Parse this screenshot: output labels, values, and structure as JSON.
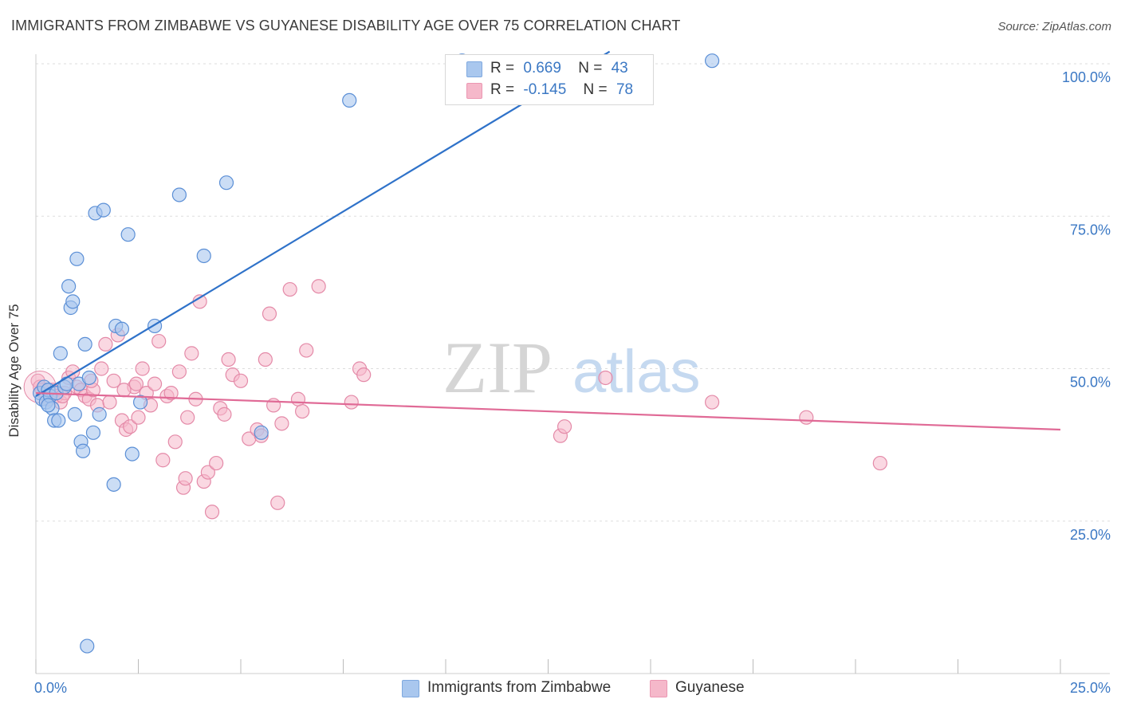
{
  "title": "IMMIGRANTS FROM ZIMBABWE VS GUYANESE DISABILITY AGE OVER 75 CORRELATION CHART",
  "source": "Source: ZipAtlas.com",
  "watermark": {
    "part1": "ZIP",
    "part2": "atlas"
  },
  "legend": {
    "rows": [
      {
        "r_label": "R =",
        "r_value": "0.669",
        "n_label": "N =",
        "n_value": "43",
        "color": "#a9c7ee"
      },
      {
        "r_label": "R =",
        "r_value": "-0.145",
        "n_label": "N =",
        "n_value": "78",
        "color": "#f5b8ca"
      }
    ]
  },
  "bottom_legend": [
    {
      "label": "Immigrants from Zimbabwe",
      "color": "#a9c7ee"
    },
    {
      "label": "Guyanese",
      "color": "#f5b8ca"
    }
  ],
  "colors": {
    "blue_fill": "#a9c7ee",
    "blue_stroke": "#5b8fd6",
    "blue_line": "#2f72c9",
    "pink_fill": "#f5b8ca",
    "pink_stroke": "#e48aa8",
    "pink_line": "#e06a96",
    "tick_label": "#3b78c4",
    "grid": "#dddddd"
  },
  "chart_data": {
    "type": "scatter",
    "title": "IMMIGRANTS FROM ZIMBABWE VS GUYANESE DISABILITY AGE OVER 75 CORRELATION CHART",
    "xlabel": "",
    "ylabel": "Disability Age Over 75",
    "xlim": [
      0,
      25
    ],
    "ylim": [
      0,
      102
    ],
    "x_tick_labels": [
      {
        "value": 0,
        "label": "0.0%"
      },
      {
        "value": 25,
        "label": "25.0%"
      }
    ],
    "y_tick_labels": [
      {
        "value": 25,
        "label": "25.0%"
      },
      {
        "value": 50,
        "label": "50.0%"
      },
      {
        "value": 75,
        "label": "75.0%"
      },
      {
        "value": 100,
        "label": "100.0%"
      }
    ],
    "grid": true,
    "legend_position": "top-center",
    "series": [
      {
        "name": "Immigrants from Zimbabwe",
        "color": "#a9c7ee",
        "trendline": {
          "x": [
            0.0,
            14.0
          ],
          "y": [
            45.5,
            102.0
          ]
        },
        "points": [
          [
            0.1,
            46.0
          ],
          [
            0.15,
            45.0
          ],
          [
            0.2,
            47.0
          ],
          [
            0.25,
            44.5
          ],
          [
            0.3,
            46.5
          ],
          [
            0.35,
            45.5
          ],
          [
            0.4,
            43.5
          ],
          [
            0.45,
            41.5
          ],
          [
            0.5,
            46.0
          ],
          [
            0.55,
            41.5
          ],
          [
            0.6,
            52.5
          ],
          [
            0.7,
            47.0
          ],
          [
            0.75,
            47.5
          ],
          [
            0.8,
            63.5
          ],
          [
            0.85,
            60.0
          ],
          [
            0.9,
            61.0
          ],
          [
            0.95,
            42.5
          ],
          [
            1.0,
            68.0
          ],
          [
            1.05,
            47.5
          ],
          [
            1.1,
            38.0
          ],
          [
            1.15,
            36.5
          ],
          [
            1.2,
            54.0
          ],
          [
            1.3,
            48.5
          ],
          [
            1.4,
            39.5
          ],
          [
            1.45,
            75.5
          ],
          [
            1.55,
            42.5
          ],
          [
            1.65,
            76.0
          ],
          [
            1.9,
            31.0
          ],
          [
            1.95,
            57.0
          ],
          [
            2.1,
            56.5
          ],
          [
            2.25,
            72.0
          ],
          [
            2.35,
            36.0
          ],
          [
            2.55,
            44.5
          ],
          [
            2.9,
            57.0
          ],
          [
            3.5,
            78.5
          ],
          [
            4.1,
            68.5
          ],
          [
            4.65,
            80.5
          ],
          [
            5.5,
            39.5
          ],
          [
            7.65,
            94.0
          ],
          [
            10.4,
            100.5
          ],
          [
            16.5,
            100.5
          ],
          [
            1.25,
            4.5
          ],
          [
            0.3,
            44.0
          ]
        ]
      },
      {
        "name": "Guyanese",
        "color": "#f5b8ca",
        "trendline": {
          "x": [
            0.0,
            25.0
          ],
          "y": [
            46.0,
            40.0
          ]
        },
        "points": [
          [
            0.05,
            48.0
          ],
          [
            0.1,
            47.0
          ],
          [
            0.2,
            46.0
          ],
          [
            0.3,
            45.0
          ],
          [
            0.4,
            46.5
          ],
          [
            0.5,
            45.5
          ],
          [
            0.6,
            44.5
          ],
          [
            0.7,
            46.0
          ],
          [
            0.8,
            48.5
          ],
          [
            0.9,
            49.5
          ],
          [
            1.0,
            47.0
          ],
          [
            1.1,
            46.5
          ],
          [
            1.2,
            45.5
          ],
          [
            1.3,
            45.0
          ],
          [
            1.4,
            46.5
          ],
          [
            1.5,
            44.0
          ],
          [
            1.6,
            50.0
          ],
          [
            1.7,
            54.0
          ],
          [
            1.8,
            44.5
          ],
          [
            1.9,
            48.0
          ],
          [
            2.0,
            55.5
          ],
          [
            2.1,
            41.5
          ],
          [
            2.2,
            40.0
          ],
          [
            2.3,
            40.5
          ],
          [
            2.4,
            47.0
          ],
          [
            2.5,
            42.0
          ],
          [
            2.6,
            50.0
          ],
          [
            2.7,
            46.0
          ],
          [
            2.8,
            44.0
          ],
          [
            2.9,
            47.5
          ],
          [
            3.0,
            54.5
          ],
          [
            3.1,
            35.0
          ],
          [
            3.2,
            45.5
          ],
          [
            3.3,
            46.0
          ],
          [
            3.4,
            38.0
          ],
          [
            3.5,
            49.5
          ],
          [
            3.6,
            30.5
          ],
          [
            3.65,
            32.0
          ],
          [
            3.8,
            52.5
          ],
          [
            3.9,
            45.0
          ],
          [
            4.0,
            61.0
          ],
          [
            4.1,
            31.5
          ],
          [
            4.2,
            33.0
          ],
          [
            4.3,
            26.5
          ],
          [
            4.4,
            34.5
          ],
          [
            4.5,
            43.5
          ],
          [
            4.7,
            51.5
          ],
          [
            4.8,
            49.0
          ],
          [
            5.0,
            48.0
          ],
          [
            5.2,
            38.5
          ],
          [
            5.4,
            40.0
          ],
          [
            5.5,
            39.0
          ],
          [
            5.6,
            51.5
          ],
          [
            5.7,
            59.0
          ],
          [
            5.8,
            44.0
          ],
          [
            5.9,
            28.0
          ],
          [
            6.0,
            41.0
          ],
          [
            6.2,
            63.0
          ],
          [
            6.4,
            45.0
          ],
          [
            6.5,
            43.0
          ],
          [
            6.6,
            53.0
          ],
          [
            6.9,
            63.5
          ],
          [
            7.7,
            44.5
          ],
          [
            7.9,
            50.0
          ],
          [
            8.0,
            49.0
          ],
          [
            12.8,
            39.0
          ],
          [
            12.9,
            40.5
          ],
          [
            13.9,
            48.5
          ],
          [
            16.5,
            44.5
          ],
          [
            18.8,
            42.0
          ],
          [
            20.6,
            34.5
          ],
          [
            1.35,
            48.0
          ],
          [
            0.65,
            45.5
          ],
          [
            2.15,
            46.5
          ],
          [
            2.45,
            47.5
          ],
          [
            3.7,
            42.0
          ],
          [
            4.6,
            42.5
          ],
          [
            0.15,
            46.5
          ]
        ]
      }
    ]
  }
}
